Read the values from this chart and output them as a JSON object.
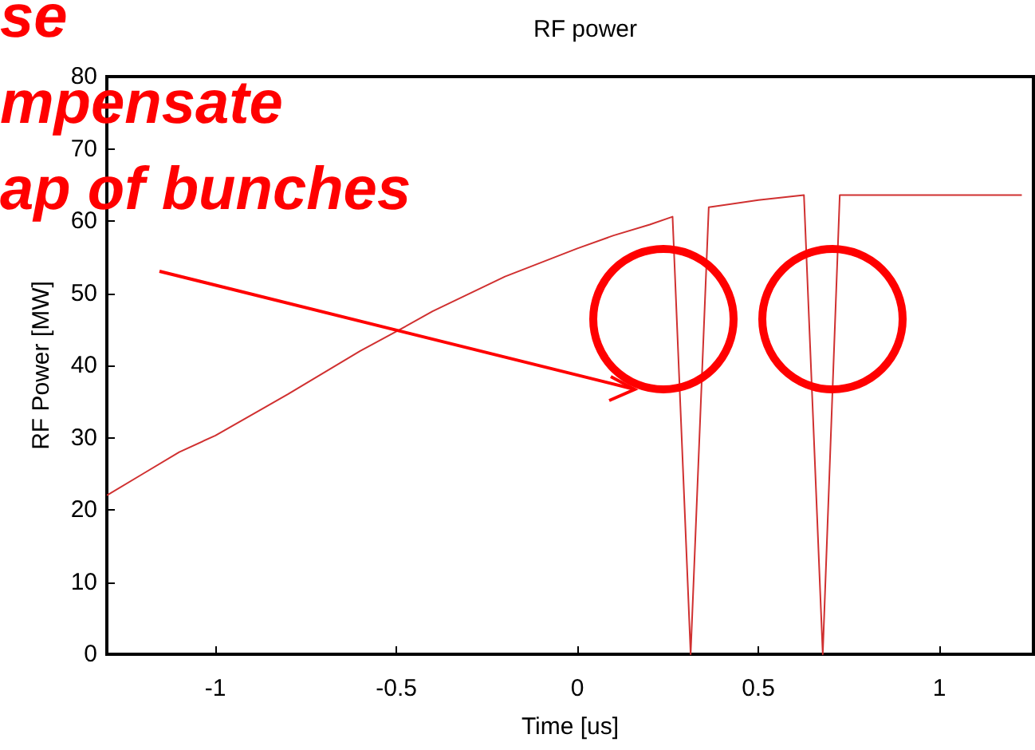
{
  "chart_data": {
    "type": "line",
    "title": "RF power",
    "xlabel": "Time [us]",
    "ylabel": "RF Power [MW]",
    "annotations": [
      "se",
      "mpensate",
      "ap of bunches"
    ],
    "series": [
      {
        "color": "#d03030",
        "x": [
          -1.3,
          -1.2,
          -1.1,
          -1,
          -0.8,
          -0.6,
          -0.5,
          -0.4,
          -0.2,
          0,
          0.1,
          0.2,
          0.263,
          0.313,
          0.363,
          0.5,
          0.626,
          0.678,
          0.725,
          1.228
        ],
        "values": [
          22,
          25,
          28,
          30.3,
          36,
          42,
          44.7,
          47.5,
          52.3,
          56.2,
          58,
          59.5,
          60.6,
          0,
          61.9,
          62.9,
          63.6,
          0,
          63.6,
          63.6
        ]
      }
    ],
    "xlim": [
      -1.3,
      1.26
    ],
    "xticks": [
      -1,
      -0.5,
      0,
      0.5,
      1
    ],
    "ylim": [
      0,
      80
    ],
    "yticks": [
      0,
      10,
      20,
      30,
      40,
      50,
      60,
      70,
      80
    ],
    "grid": false,
    "marker": "none",
    "line_style": "solid"
  }
}
